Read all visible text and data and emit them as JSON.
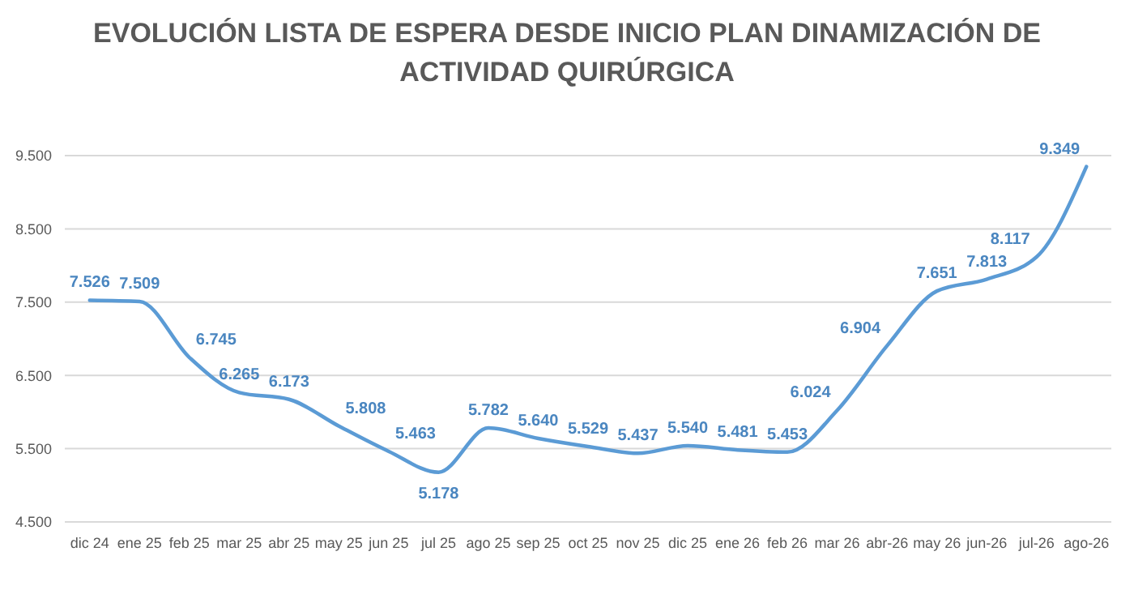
{
  "chart_data": {
    "type": "line",
    "title": "EVOLUCIÓN LISTA DE ESPERA DESDE INICIO PLAN DINAMIZACIÓN DE ACTIVIDAD QUIRÚRGICA",
    "categories": [
      "dic 24",
      "ene 25",
      "feb 25",
      "mar 25",
      "abr 25",
      "may 25",
      "jun 25",
      "jul 25",
      "ago 25",
      "sep 25",
      "oct 25",
      "nov 25",
      "dic 25",
      "ene 26",
      "feb 26",
      "mar 26",
      "abr-26",
      "may 26",
      "jun-26",
      "jul-26",
      "ago-26"
    ],
    "series": [
      {
        "color": "#5b9bd5",
        "values": [
          7526,
          7509,
          6745,
          6265,
          6173,
          5808,
          5463,
          5178,
          5782,
          5640,
          5529,
          5437,
          5540,
          5481,
          5453,
          6024,
          6904,
          7651,
          7813,
          8117,
          9349
        ],
        "value_labels": [
          "7.526",
          "7.509",
          "6.745",
          "6.265",
          "6.173",
          "5.808",
          "5.463",
          "5.178",
          "5.782",
          "5.640",
          "5.529",
          "5.437",
          "5.540",
          "5.481",
          "5.453",
          "6.024",
          "6.904",
          "7.651",
          "7.813",
          "8.117",
          "9.349"
        ]
      }
    ],
    "ylim": [
      4500,
      9500
    ],
    "yticks": [
      {
        "value": 4500,
        "label": "4.500"
      },
      {
        "value": 5500,
        "label": "5.500"
      },
      {
        "value": 6500,
        "label": "6.500"
      },
      {
        "value": 7500,
        "label": "7.500"
      },
      {
        "value": 8500,
        "label": "8.500"
      },
      {
        "value": 9500,
        "label": "9.500"
      }
    ],
    "grid": "y",
    "marker": "none",
    "line_style": "solid"
  }
}
